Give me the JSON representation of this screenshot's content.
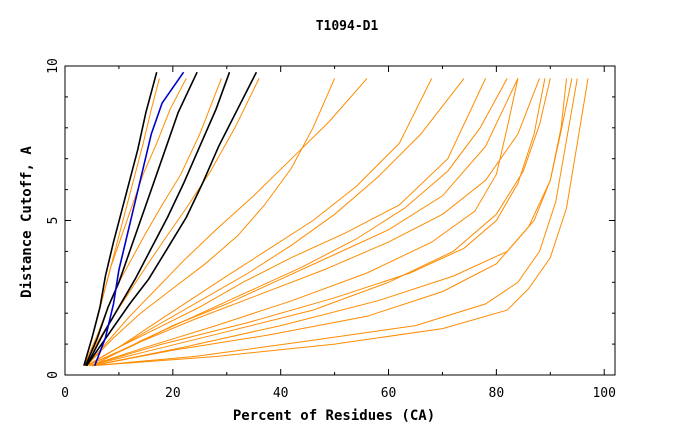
{
  "chart_data": {
    "type": "line",
    "title": "T1094-D1",
    "xlabel": "Percent of Residues (CA)",
    "ylabel": "Distance Cutoff, A",
    "xlim": [
      0,
      102
    ],
    "ylim": [
      0,
      10
    ],
    "xticks": [
      "0",
      "20",
      "40",
      "60",
      "80",
      "100"
    ],
    "yticks": [
      "0",
      "5",
      "10"
    ],
    "colors": {
      "models": "#ff8c00",
      "highlight": "#000000",
      "best": "#0000cc"
    },
    "series": [
      {
        "x": [
          3.5,
          5.5,
          7,
          8.5,
          10,
          11.5,
          13,
          14.5,
          16,
          17.5
        ],
        "y": [
          0.3,
          1.5,
          2.5,
          3.5,
          4.5,
          5.5,
          6.5,
          7.5,
          8.6,
          9.6
        ]
      },
      {
        "x": [
          3.5,
          5.5,
          7,
          8.5,
          10.5,
          12.5,
          14.5,
          17,
          19.5,
          22.5
        ],
        "y": [
          0.3,
          1.5,
          2.5,
          3.5,
          4.5,
          5.5,
          6.5,
          7.5,
          8.6,
          9.6
        ]
      },
      {
        "x": [
          3.5,
          6,
          8,
          10,
          12.5,
          15,
          18,
          21.5,
          25,
          29
        ],
        "y": [
          0.3,
          1.3,
          2.2,
          3.0,
          3.8,
          4.6,
          5.5,
          6.5,
          7.8,
          9.6
        ]
      },
      {
        "x": [
          3.5,
          6.5,
          9,
          12,
          15,
          18.5,
          22.5,
          27,
          31.5,
          36
        ],
        "y": [
          0.3,
          1.2,
          1.9,
          2.7,
          3.5,
          4.4,
          5.4,
          6.6,
          8.0,
          9.6
        ]
      },
      {
        "x": [
          4,
          9,
          14,
          20,
          26,
          32,
          37,
          42,
          46,
          50
        ],
        "y": [
          0.3,
          1.2,
          2.0,
          2.8,
          3.6,
          4.5,
          5.5,
          6.7,
          8.0,
          9.6
        ]
      },
      {
        "x": [
          4,
          11,
          18,
          26,
          34,
          42,
          50,
          58,
          66,
          74
        ],
        "y": [
          0.3,
          1.0,
          1.7,
          2.5,
          3.3,
          4.2,
          5.2,
          6.4,
          7.8,
          9.6
        ]
      },
      {
        "x": [
          4,
          10,
          17,
          25,
          33,
          42,
          52,
          62,
          71,
          78
        ],
        "y": [
          0.3,
          0.9,
          1.5,
          2.2,
          3.0,
          3.8,
          4.6,
          5.5,
          7.0,
          9.6
        ]
      },
      {
        "x": [
          4,
          12,
          20,
          30,
          40,
          50,
          60,
          70,
          78,
          84
        ],
        "y": [
          0.3,
          0.9,
          1.6,
          2.3,
          3.1,
          3.9,
          4.7,
          5.8,
          7.4,
          9.6
        ]
      },
      {
        "x": [
          4.5,
          15,
          28,
          42,
          56,
          68,
          76,
          80,
          82,
          84
        ],
        "y": [
          0.3,
          0.9,
          1.6,
          2.4,
          3.3,
          4.3,
          5.3,
          6.5,
          8.0,
          9.6
        ]
      },
      {
        "x": [
          4.5,
          16,
          30,
          46,
          60,
          72,
          80,
          85,
          88,
          90
        ],
        "y": [
          0.3,
          0.8,
          1.4,
          2.1,
          3.0,
          4.0,
          5.2,
          6.6,
          8.1,
          9.6
        ]
      },
      {
        "x": [
          5,
          20,
          38,
          56,
          70,
          80,
          86,
          90,
          92,
          93
        ],
        "y": [
          0.3,
          0.8,
          1.3,
          1.9,
          2.7,
          3.6,
          4.8,
          6.3,
          8.0,
          9.6
        ]
      },
      {
        "x": [
          5,
          24,
          45,
          65,
          78,
          84,
          88,
          91,
          93,
          95
        ],
        "y": [
          0.3,
          0.6,
          1.1,
          1.6,
          2.3,
          3.0,
          4.0,
          5.6,
          7.6,
          9.6
        ]
      },
      {
        "x": [
          5,
          28,
          50,
          70,
          82,
          86,
          90,
          93,
          95,
          97
        ],
        "y": [
          0.3,
          0.6,
          1.0,
          1.5,
          2.1,
          2.8,
          3.8,
          5.4,
          7.5,
          9.6
        ]
      },
      {
        "x": [
          4,
          10,
          16,
          23,
          30,
          38,
          46,
          54,
          62,
          68
        ],
        "y": [
          0.3,
          0.9,
          1.6,
          2.4,
          3.2,
          4.1,
          5.0,
          6.1,
          7.5,
          9.6
        ]
      },
      {
        "x": [
          4,
          8,
          12,
          17,
          22,
          28,
          35,
          42,
          49,
          56
        ],
        "y": [
          0.3,
          1.1,
          1.9,
          2.8,
          3.7,
          4.7,
          5.8,
          7.0,
          8.2,
          9.6
        ]
      },
      {
        "x": [
          4,
          13,
          24,
          36,
          48,
          60,
          70,
          78,
          84,
          88
        ],
        "y": [
          0.3,
          1.0,
          1.8,
          2.6,
          3.4,
          4.3,
          5.2,
          6.3,
          7.8,
          9.6
        ]
      },
      {
        "x": [
          4.5,
          18,
          34,
          50,
          64,
          74,
          80,
          84,
          87,
          89
        ],
        "y": [
          0.3,
          1.0,
          1.7,
          2.5,
          3.3,
          4.1,
          5.0,
          6.2,
          7.8,
          9.6
        ]
      },
      {
        "x": [
          5,
          22,
          40,
          58,
          72,
          82,
          87,
          90,
          92,
          94
        ],
        "y": [
          0.3,
          0.9,
          1.6,
          2.4,
          3.2,
          4.0,
          5.0,
          6.3,
          7.9,
          9.6
        ]
      },
      {
        "x": [
          5,
          14,
          24,
          34,
          44,
          54,
          63,
          71,
          77,
          82
        ],
        "y": [
          0.3,
          1.1,
          1.9,
          2.7,
          3.5,
          4.4,
          5.4,
          6.6,
          8.0,
          9.6
        ]
      }
    ],
    "highlight_series": [
      {
        "x": [
          3.5,
          5,
          6.5,
          7.5,
          9,
          10.5,
          12,
          13.5,
          15,
          17
        ],
        "y": [
          0.3,
          1.2,
          2.2,
          3.2,
          4.3,
          5.3,
          6.3,
          7.3,
          8.5,
          9.8
        ]
      },
      {
        "x": [
          3.8,
          6,
          8,
          10,
          12,
          14,
          16,
          18,
          21,
          24.5
        ],
        "y": [
          0.3,
          1.2,
          2.2,
          3.0,
          4.0,
          5.0,
          6.0,
          7.0,
          8.5,
          9.8
        ]
      },
      {
        "x": [
          4,
          7,
          10,
          13,
          16,
          19,
          22,
          25,
          28,
          30.5
        ],
        "y": [
          0.3,
          1.3,
          2.2,
          3.1,
          4.1,
          5.1,
          6.2,
          7.4,
          8.6,
          9.8
        ]
      },
      {
        "x": [
          4,
          8,
          12,
          15.5,
          19,
          22.5,
          25.5,
          28.5,
          32,
          35.5
        ],
        "y": [
          0.3,
          1.3,
          2.3,
          3.1,
          4.1,
          5.1,
          6.2,
          7.4,
          8.6,
          9.8
        ]
      }
    ],
    "best_series": {
      "x": [
        5.5,
        7.5,
        9,
        10,
        11.5,
        13,
        14.5,
        16,
        18,
        22
      ],
      "y": [
        0.3,
        1.2,
        2.3,
        3.4,
        4.5,
        5.6,
        6.7,
        7.8,
        8.8,
        9.8
      ]
    }
  }
}
